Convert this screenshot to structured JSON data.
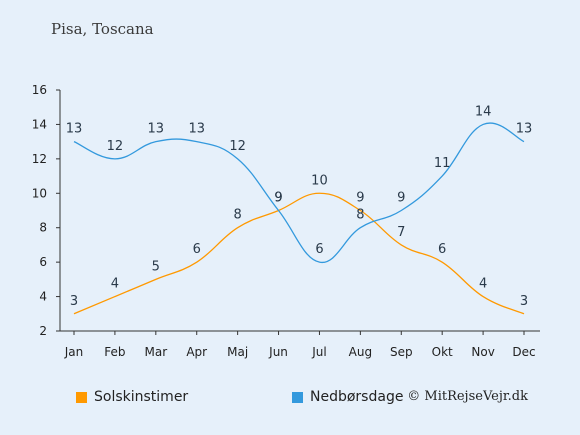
{
  "title": "Pisa, Toscana",
  "credit": "© MitRejseVejr.dk",
  "chart_data": {
    "type": "line",
    "categories": [
      "Jan",
      "Feb",
      "Mar",
      "Apr",
      "Maj",
      "Jun",
      "Jul",
      "Aug",
      "Sep",
      "Okt",
      "Nov",
      "Dec"
    ],
    "series": [
      {
        "name": "Solskinstimer",
        "color": "#ff9900",
        "values": [
          3,
          4,
          5,
          6,
          8,
          9,
          10,
          9,
          7,
          6,
          4,
          3
        ]
      },
      {
        "name": "Nedbørsdage",
        "color": "#3399dd",
        "values": [
          13,
          12,
          13,
          13,
          12,
          9,
          6,
          8,
          9,
          11,
          14,
          13
        ]
      }
    ],
    "ylim": [
      2,
      16
    ],
    "yticks": [
      2,
      4,
      6,
      8,
      10,
      12,
      14,
      16
    ],
    "grid": false,
    "legend": "bottom-left"
  }
}
